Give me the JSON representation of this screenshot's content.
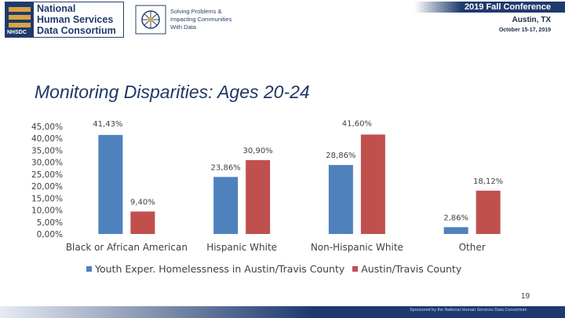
{
  "header": {
    "org_lines": [
      "National",
      "Human Services",
      "Data Consortium"
    ],
    "org_mark": "NHSDC",
    "tagline_lines": [
      "Solving Problems &",
      "Impacting Communities",
      "With Data"
    ],
    "conference_title": "2019 Fall Conference",
    "conference_place": "Austin, TX",
    "conference_dates": "October 15-17, 2019"
  },
  "slide": {
    "title": "Monitoring Disparities: Ages 20-24",
    "page_number": "19",
    "footer": "Sponsored by the National Human Services Data Consortium"
  },
  "colors": {
    "series1": "#4f81bd",
    "series2": "#c0504d",
    "brand_navy": "#1e3a6e",
    "brand_gold": "#d9a441",
    "title": "#1f3864"
  },
  "chart_data": {
    "type": "bar",
    "categories": [
      "Black or African American",
      "Hispanic White",
      "Non-Hispanic White",
      "Other"
    ],
    "series": [
      {
        "name": "Youth Exper. Homelessness in Austin/Travis County",
        "values": [
          41.43,
          23.86,
          28.86,
          2.86
        ],
        "labels": [
          "41,43%",
          "23,86%",
          "28,86%",
          "2,86%"
        ]
      },
      {
        "name": "Austin/Travis County",
        "values": [
          9.4,
          30.9,
          41.6,
          18.12
        ],
        "labels": [
          "9,40%",
          "30,90%",
          "41,60%",
          "18,12%"
        ]
      }
    ],
    "ylim": [
      0,
      45
    ],
    "yticks": [
      "0,00%",
      "5,00%",
      "10,00%",
      "15,00%",
      "20,00%",
      "25,00%",
      "30,00%",
      "35,00%",
      "40,00%",
      "45,00%"
    ],
    "grid": false,
    "legend": "bottom"
  }
}
